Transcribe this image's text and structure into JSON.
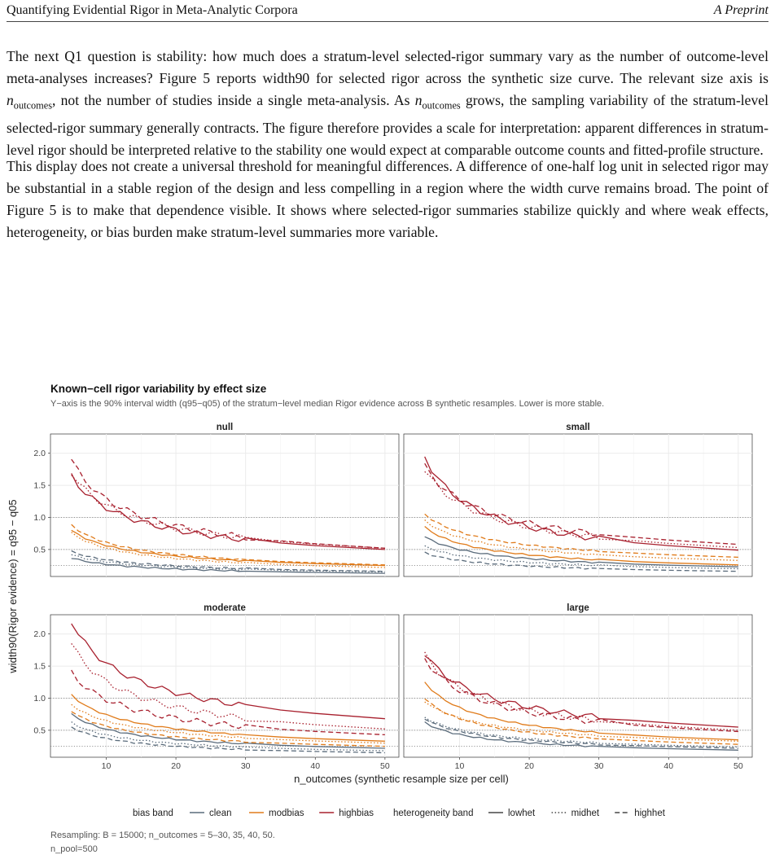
{
  "header": {
    "left": "Quantifying Evidential Rigor in Meta-Analytic Corpora",
    "right": "A Preprint"
  },
  "paragraphs": {
    "p1_a": "The next Q1 question is stability: how much does a stratum-level selected-rigor summary vary as the number of outcome-level meta-analyses increases? Figure 5 reports width90 for selected rigor across the synthetic size curve. The relevant size axis is ",
    "p1_var1": "n",
    "p1_sub1": "outcomes",
    "p1_b": ", not the number of studies inside a single meta-analysis. As ",
    "p1_var2": "n",
    "p1_sub2": "outcomes",
    "p1_c": " grows, the sampling variability of the stratum-level selected-rigor summary generally contracts. The figure therefore provides a scale for interpretation: apparent differences in stratum-level rigor should be interpreted relative to the stability one would expect at comparable outcome counts and fitted-profile structure.",
    "p2": "This display does not create a universal threshold for meaningful differences. A difference of one-half log unit in selected rigor may be substantial in a stable region of the design and less compelling in a region where the width curve remains broad. The point of Figure 5 is to make that dependence visible. It shows where selected-rigor summaries stabilize quickly and where weak effects, heterogeneity, or bias burden make stratum-level summaries more variable."
  },
  "figure": {
    "title": "Known−cell rigor variability by effect size",
    "subtitle": "Y−axis is the 90% interval width (q95−q05) of the stratum−level median Rigor evidence across B synthetic resamples. Lower is more stable.",
    "ylabel": "width90(Rigor evidence) = q95 − q05",
    "xlabel": "n_outcomes (synthetic resample size per cell)",
    "legend": {
      "bias_title": "bias band",
      "bias_items": [
        "clean",
        "modbias",
        "highbias"
      ],
      "het_title": "heterogeneity band",
      "het_items": [
        "lowhet",
        "midhet",
        "highhet"
      ]
    },
    "caption_line1": "Resampling: B = 15000; n_outcomes = 5–30, 35, 40, 50.",
    "caption_line2": "n_pool=500"
  },
  "chart_data": {
    "type": "line",
    "facets": [
      "null",
      "small",
      "moderate",
      "large"
    ],
    "x": [
      5,
      6,
      7,
      8,
      9,
      10,
      11,
      12,
      13,
      14,
      15,
      16,
      17,
      18,
      19,
      20,
      21,
      22,
      23,
      24,
      25,
      26,
      27,
      28,
      29,
      30,
      35,
      40,
      50
    ],
    "xlim": [
      2,
      52
    ],
    "ylim": [
      0.08,
      2.3
    ],
    "x_ticks": [
      10,
      20,
      30,
      40,
      50
    ],
    "y_ticks": [
      0.5,
      1.0,
      1.5,
      2.0
    ],
    "reference_lines": [
      0.25,
      0.5,
      1.0
    ],
    "colors": {
      "clean": "#5a6b7b",
      "modbias": "#e07b1a",
      "highbias": "#a8202e"
    },
    "linetypes": {
      "lowhet": "solid",
      "midhet": "dotted",
      "highhet": "dashed"
    },
    "curve_params": {
      "null": {
        "clean": {
          "lowhet": [
            0.37,
            0.13
          ],
          "midhet": [
            0.42,
            0.15
          ],
          "highhet": [
            0.47,
            0.16
          ]
        },
        "modbias": {
          "lowhet": [
            0.8,
            0.25
          ],
          "midhet": [
            0.76,
            0.22
          ],
          "highhet": [
            0.88,
            0.26
          ]
        },
        "highbias": {
          "lowhet": [
            1.65,
            0.5
          ],
          "midhet": [
            1.7,
            0.52
          ],
          "highhet": [
            1.9,
            0.52
          ]
        }
      },
      "small": {
        "clean": {
          "lowhet": [
            0.7,
            0.23
          ],
          "midhet": [
            0.55,
            0.2
          ],
          "highhet": [
            0.45,
            0.16
          ]
        },
        "modbias": {
          "lowhet": [
            0.85,
            0.26
          ],
          "midhet": [
            0.95,
            0.33
          ],
          "highhet": [
            1.05,
            0.38
          ]
        },
        "highbias": {
          "lowhet": [
            1.95,
            0.49
          ],
          "midhet": [
            1.75,
            0.53
          ],
          "highhet": [
            1.8,
            0.58
          ]
        }
      },
      "moderate": {
        "clean": {
          "lowhet": [
            0.75,
            0.22
          ],
          "midhet": [
            0.62,
            0.18
          ],
          "highhet": [
            0.55,
            0.15
          ]
        },
        "modbias": {
          "lowhet": [
            1.05,
            0.33
          ],
          "midhet": [
            0.9,
            0.3
          ],
          "highhet": [
            0.8,
            0.25
          ]
        },
        "highbias": {
          "lowhet": [
            2.2,
            0.68
          ],
          "midhet": [
            1.85,
            0.52
          ],
          "highhet": [
            1.4,
            0.43
          ]
        }
      },
      "large": {
        "clean": {
          "lowhet": [
            0.62,
            0.19
          ],
          "midhet": [
            0.7,
            0.24
          ],
          "highhet": [
            0.68,
            0.22
          ]
        },
        "modbias": {
          "lowhet": [
            1.25,
            0.35
          ],
          "midhet": [
            0.95,
            0.33
          ],
          "highhet": [
            1.0,
            0.28
          ]
        },
        "highbias": {
          "lowhet": [
            1.7,
            0.55
          ],
          "midhet": [
            1.68,
            0.5
          ],
          "highhet": [
            1.62,
            0.48
          ]
        }
      }
    }
  }
}
